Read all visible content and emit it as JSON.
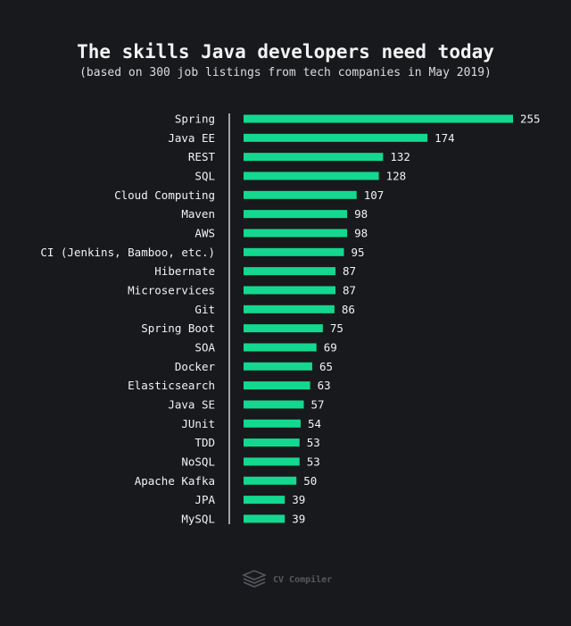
{
  "chart_data": {
    "type": "bar",
    "orientation": "horizontal",
    "title": "The skills Java developers need today",
    "subtitle": "(based on 300 job listings from tech companies in May 2019)",
    "categories": [
      "Spring",
      "Java EE",
      "REST",
      "SQL",
      "Cloud Computing",
      "Maven",
      "AWS",
      "CI (Jenkins, Bamboo, etc.)",
      "Hibernate",
      "Microservices",
      "Git",
      "Spring Boot",
      "SOA",
      "Docker",
      "Elasticsearch",
      "Java SE",
      "JUnit",
      "TDD",
      "NoSQL",
      "Apache Kafka",
      "JPA",
      "MySQL"
    ],
    "values": [
      255,
      174,
      132,
      128,
      107,
      98,
      98,
      95,
      87,
      87,
      86,
      75,
      69,
      65,
      63,
      57,
      54,
      53,
      53,
      50,
      39,
      39
    ],
    "xlim": [
      0,
      255
    ],
    "grid": false,
    "data_labels": true,
    "colors": {
      "bar": "#14d88f",
      "background": "#17191c",
      "text": "#f2f2f2",
      "axis": "#d0d0d0"
    }
  },
  "footer": {
    "brand": "CV Compiler",
    "icon": "stacked-layers-icon"
  }
}
